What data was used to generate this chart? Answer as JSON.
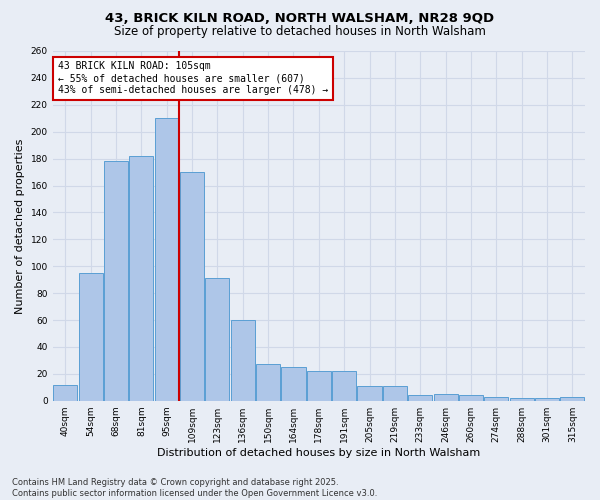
{
  "title1": "43, BRICK KILN ROAD, NORTH WALSHAM, NR28 9QD",
  "title2": "Size of property relative to detached houses in North Walsham",
  "xlabel": "Distribution of detached houses by size in North Walsham",
  "ylabel": "Number of detached properties",
  "categories": [
    "40sqm",
    "54sqm",
    "68sqm",
    "81sqm",
    "95sqm",
    "109sqm",
    "123sqm",
    "136sqm",
    "150sqm",
    "164sqm",
    "178sqm",
    "191sqm",
    "205sqm",
    "219sqm",
    "233sqm",
    "246sqm",
    "260sqm",
    "274sqm",
    "288sqm",
    "301sqm",
    "315sqm"
  ],
  "values": [
    12,
    95,
    178,
    182,
    210,
    170,
    91,
    60,
    27,
    25,
    22,
    22,
    11,
    11,
    4,
    5,
    4,
    3,
    2,
    2,
    3
  ],
  "bar_color": "#aec6e8",
  "bar_edgecolor": "#5a9fd4",
  "vline_color": "#cc0000",
  "annotation_text": "43 BRICK KILN ROAD: 105sqm\n← 55% of detached houses are smaller (607)\n43% of semi-detached houses are larger (478) →",
  "annotation_box_color": "white",
  "annotation_box_edgecolor": "#cc0000",
  "ylim": [
    0,
    260
  ],
  "yticks": [
    0,
    20,
    40,
    60,
    80,
    100,
    120,
    140,
    160,
    180,
    200,
    220,
    240,
    260
  ],
  "grid_color": "#d0d8e8",
  "background_color": "#e8edf5",
  "footer": "Contains HM Land Registry data © Crown copyright and database right 2025.\nContains public sector information licensed under the Open Government Licence v3.0.",
  "title_fontsize": 9.5,
  "subtitle_fontsize": 8.5,
  "axis_label_fontsize": 8,
  "tick_fontsize": 6.5,
  "annotation_fontsize": 7,
  "footer_fontsize": 6
}
